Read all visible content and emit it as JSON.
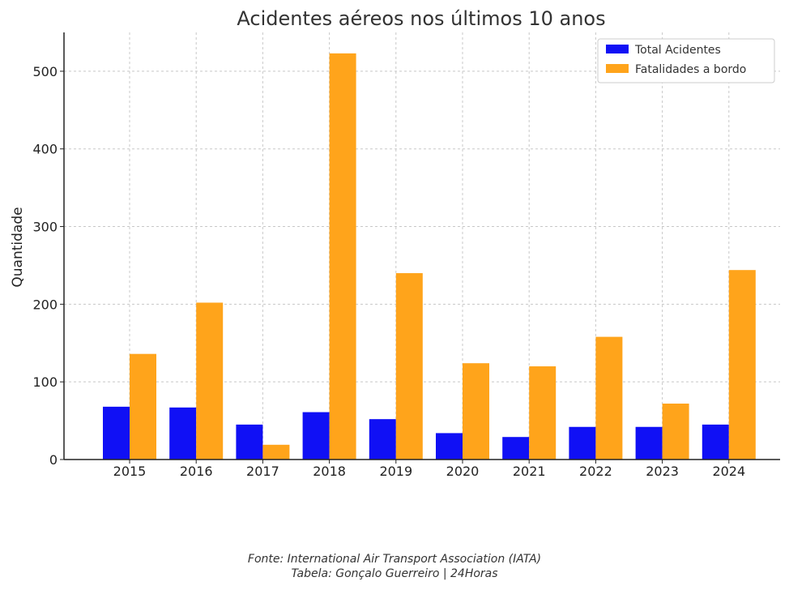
{
  "chart_data": {
    "type": "bar",
    "title": "Acidentes aéreos nos últimos 10 anos",
    "xlabel": "",
    "ylabel": "Quantidade",
    "ylim": [
      0,
      550
    ],
    "yticks": [
      0,
      100,
      200,
      300,
      400,
      500
    ],
    "grid": true,
    "legend_position": "top-right",
    "categories": [
      "2015",
      "2016",
      "2017",
      "2018",
      "2019",
      "2020",
      "2021",
      "2022",
      "2023",
      "2024"
    ],
    "series": [
      {
        "name": "Total Acidentes",
        "color": "#1010f5",
        "values": [
          68,
          67,
          45,
          61,
          52,
          34,
          29,
          42,
          42,
          45
        ]
      },
      {
        "name": "Fatalidades a bordo",
        "color": "#ffa41b",
        "values": [
          136,
          202,
          19,
          523,
          240,
          124,
          120,
          158,
          72,
          244
        ]
      }
    ]
  },
  "footer": {
    "source": "Fonte: International Air Transport Association (IATA)",
    "credit": "Tabela: Gonçalo Guerreiro | 24Horas"
  }
}
